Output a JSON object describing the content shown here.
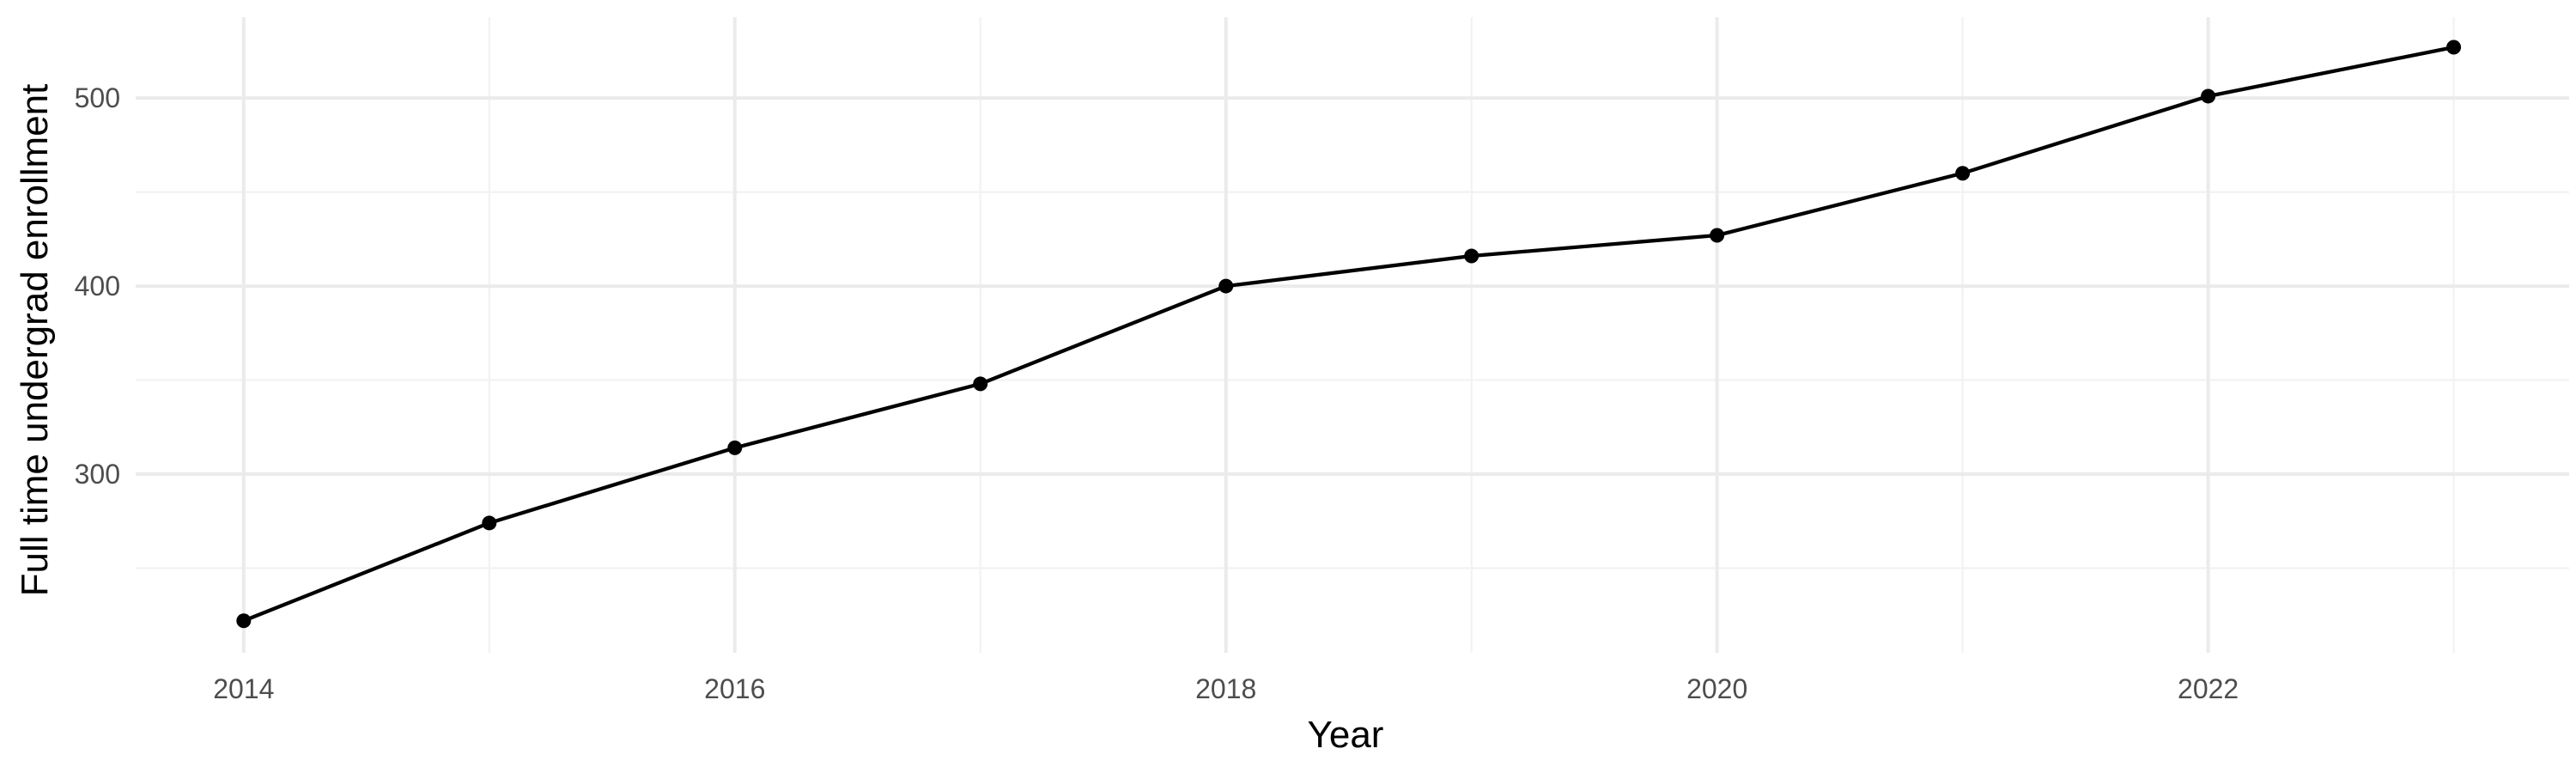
{
  "chart_data": {
    "type": "line",
    "title": "",
    "xlabel": "Year",
    "ylabel": "Full time undergrad enrollment",
    "x": [
      2014,
      2015,
      2016,
      2017,
      2018,
      2019,
      2020,
      2021,
      2022,
      2023
    ],
    "series": [
      {
        "values": [
          222,
          274,
          314,
          348,
          400,
          416,
          427,
          460,
          501,
          527
        ],
        "color": "#000000",
        "markers": true
      }
    ],
    "x_ticks": [
      "2014",
      "2016",
      "2018",
      "2020",
      "2022"
    ],
    "y_ticks": [
      "300",
      "400",
      "500"
    ],
    "xlim": [
      2013.56,
      2023.47
    ],
    "ylim": [
      205,
      543
    ],
    "grid": true,
    "legend": "none",
    "theme": "minimal"
  }
}
